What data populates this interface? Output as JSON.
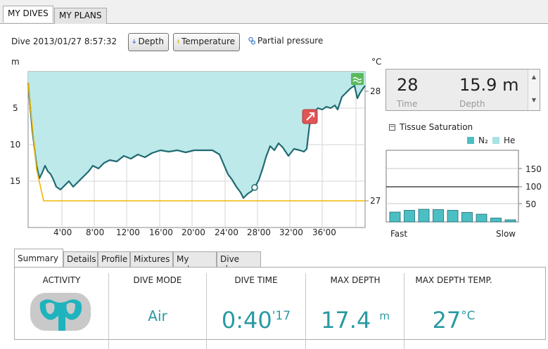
{
  "top_tabs": {
    "my_dives": "MY DIVES",
    "my_plans": "MY PLANS"
  },
  "dive_title": "Dive 2013/01/27 8:57:32",
  "toolbar": {
    "depth": "Depth",
    "temperature": "Temperature",
    "partial_pressure": "Partial pressure"
  },
  "axis": {
    "left_unit": "m",
    "right_unit": "°C",
    "left_ticks": [
      "5",
      "10",
      "15"
    ],
    "right_ticks": [
      "28",
      "27"
    ],
    "x_ticks": [
      "4'00",
      "8'00",
      "12'00",
      "16'00",
      "20'00",
      "24'00",
      "28'00",
      "32'00",
      "36'00"
    ]
  },
  "readout": {
    "time_value": "28",
    "time_label": "Time",
    "depth_value": "15.9 m",
    "depth_label": "Depth"
  },
  "tissue": {
    "title": "Tissue Saturation",
    "legend": [
      {
        "label": "N₂",
        "color": "#4bbfc4"
      },
      {
        "label": "He",
        "color": "#a8e2e4"
      }
    ],
    "y_ticks": [
      "150",
      "100",
      "50"
    ],
    "fast_label": "Fast",
    "slow_label": "Slow",
    "bar_values": [
      28,
      33,
      36,
      35,
      33,
      27,
      22,
      11,
      6
    ]
  },
  "bottom_tabs": [
    "Summary",
    "Details",
    "Profile",
    "Mixtures",
    "My notes",
    "Dive plan"
  ],
  "summary": {
    "activity_header": "ACTIVITY",
    "dive_mode_header": "DIVE MODE",
    "dive_mode_value": "Air",
    "dive_time_header": "DIVE TIME",
    "dive_time_main": "0:40",
    "dive_time_sec": "'17",
    "max_depth_header": "MAX DEPTH",
    "max_depth_value": "17.4",
    "max_depth_unit": "m",
    "max_depth_temp_header": "MAX DEPTH TEMP.",
    "max_depth_temp_value": "27",
    "max_depth_temp_unit": "°C"
  },
  "colors": {
    "profile_fill": "#bde9ea",
    "profile_line": "#1f6a72",
    "temperature": "#f2b600",
    "accent": "#2a9aa3"
  }
}
